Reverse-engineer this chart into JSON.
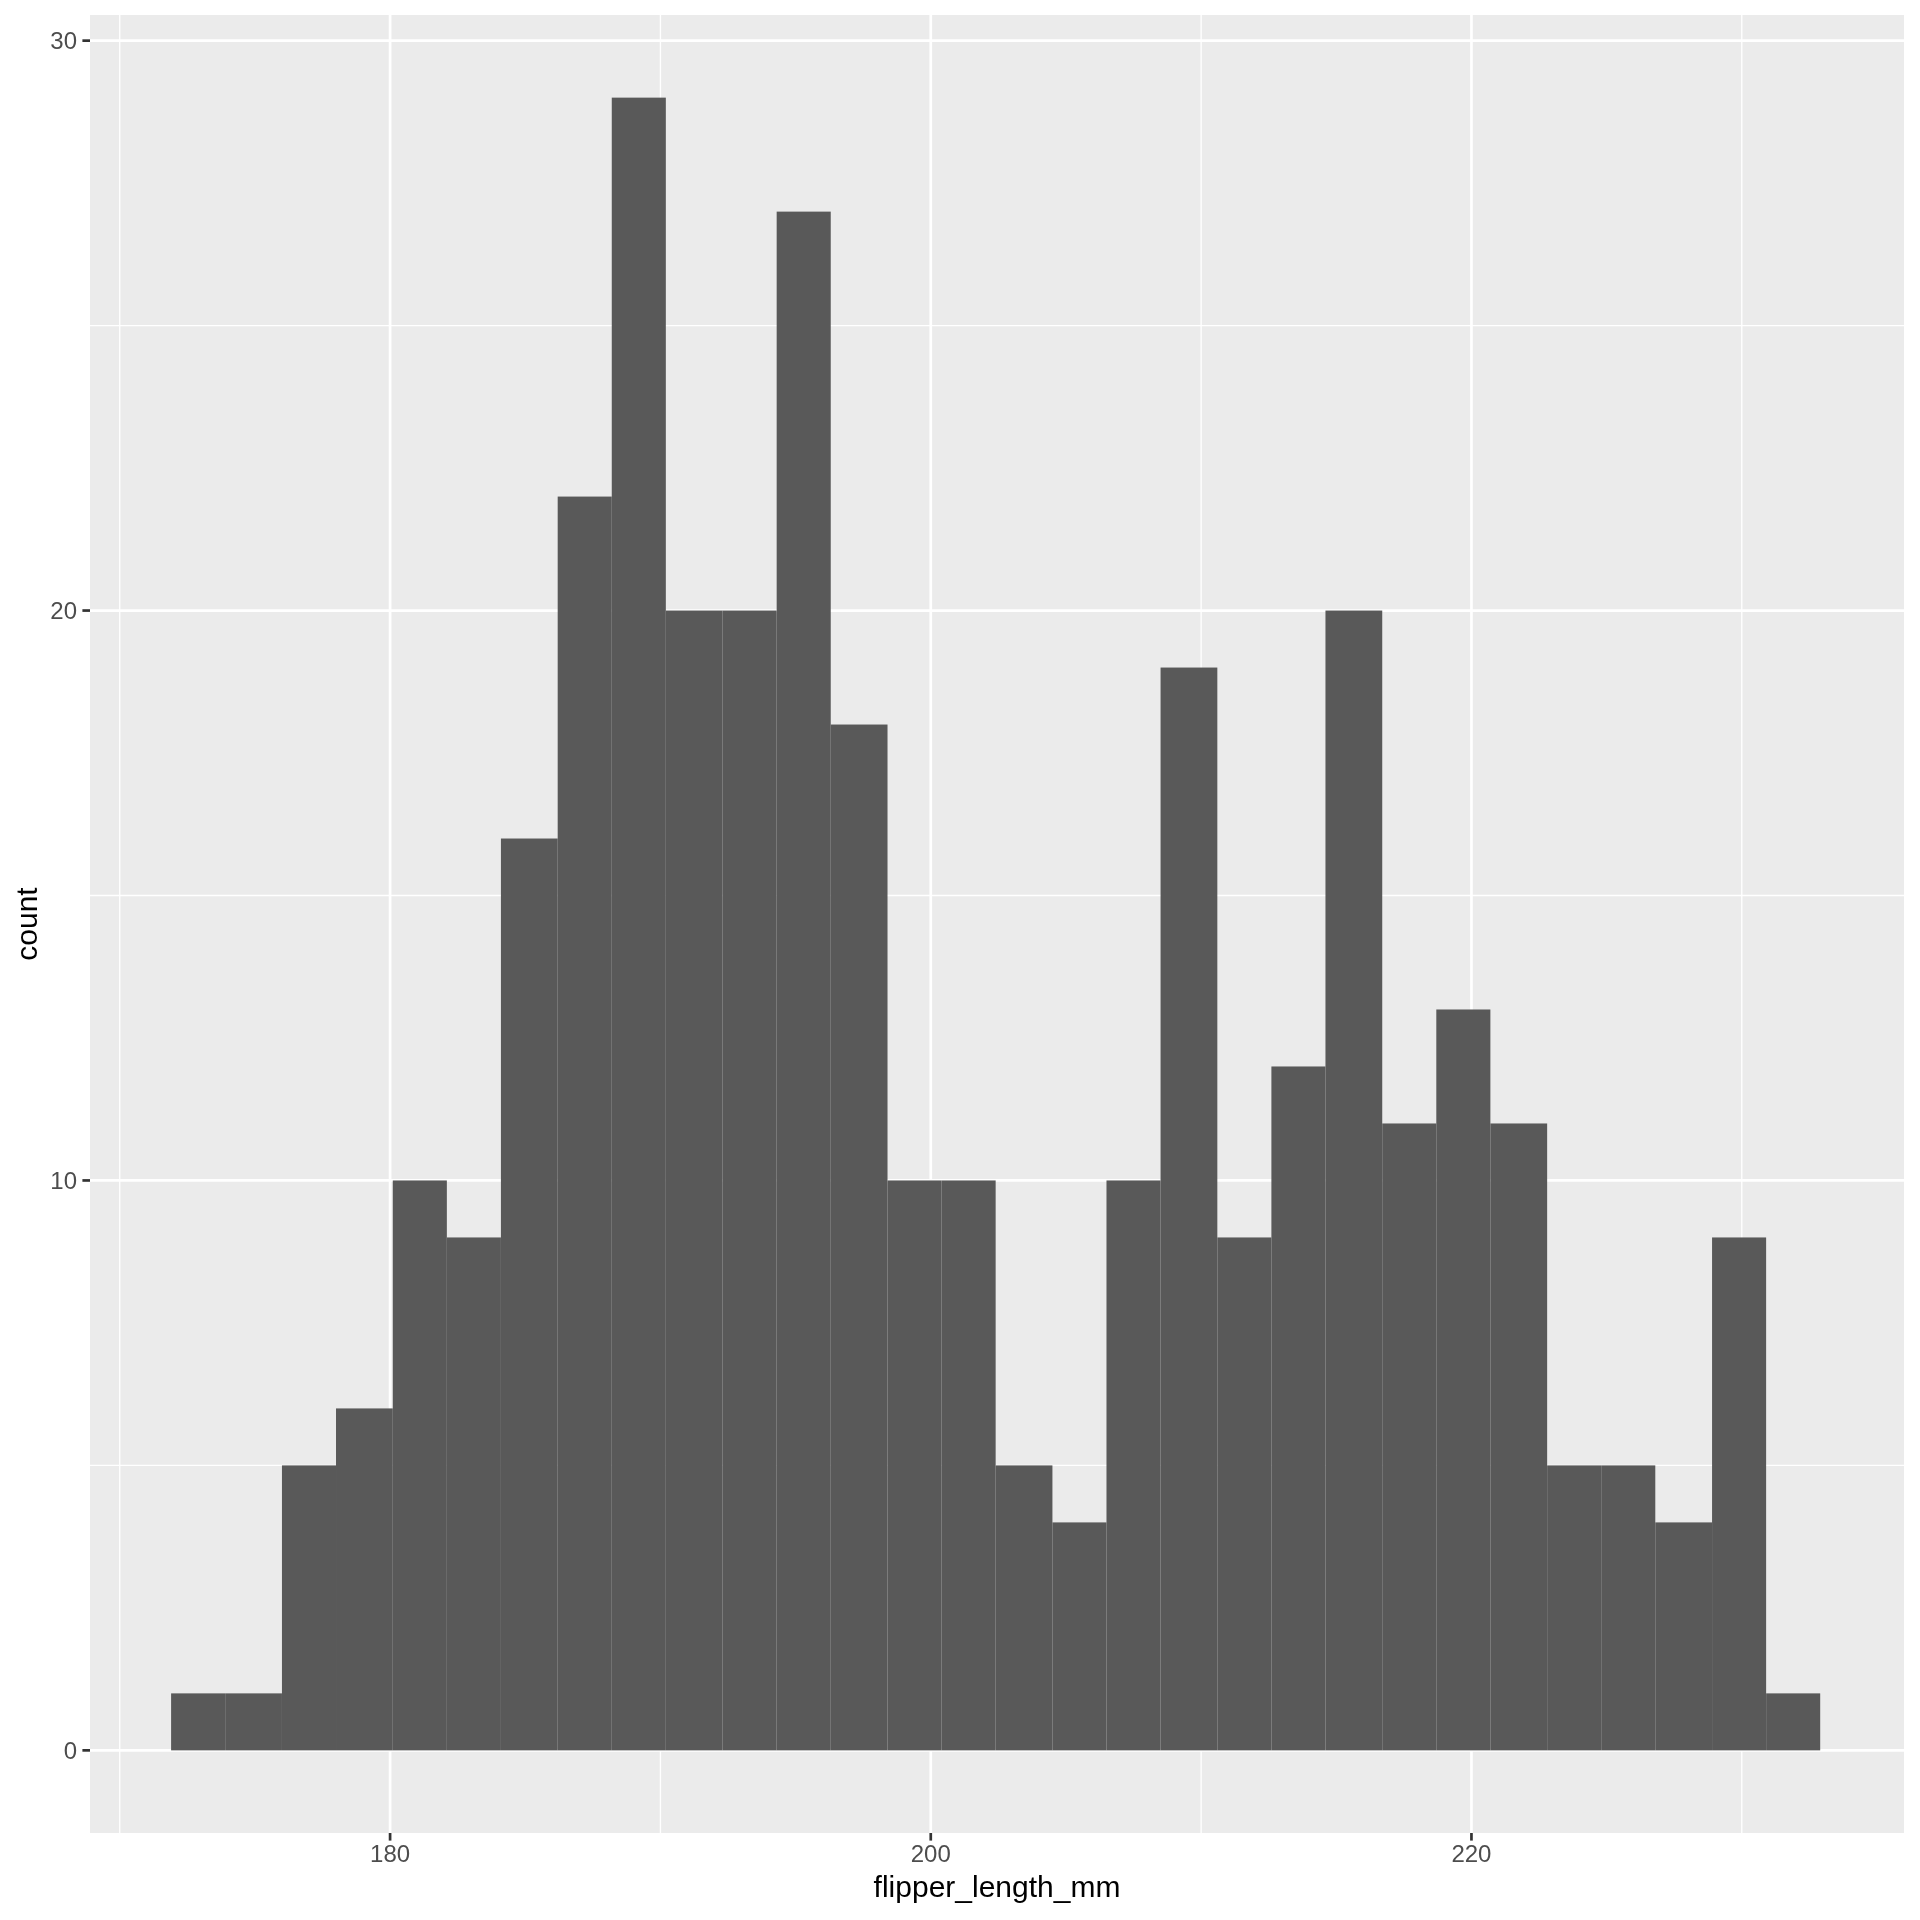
{
  "chart_data": {
    "type": "histogram",
    "xlabel": "flipper_length_mm",
    "ylabel": "count",
    "bins": [
      171.9,
      173.9,
      176,
      178,
      180.1,
      182.1,
      184.1,
      186.2,
      188.2,
      190.2,
      192.3,
      194.3,
      196.3,
      198.4,
      200.4,
      202.4,
      204.5,
      206.5,
      208.5,
      210.6,
      212.6,
      214.6,
      216.7,
      218.7,
      220.7,
      222.8,
      224.8,
      226.8,
      228.9,
      230.9,
      232.9
    ],
    "values": [
      1,
      1,
      5,
      6,
      10,
      9,
      16,
      22,
      29,
      20,
      20,
      27,
      18,
      10,
      10,
      5,
      4,
      10,
      19,
      9,
      12,
      20,
      11,
      13,
      11,
      5,
      5,
      4,
      9,
      1
    ],
    "color": "#595959",
    "xlim": [
      168.9,
      236
    ],
    "ylim": [
      -1.45,
      30.45
    ],
    "xticks": [
      {
        "value": 170,
        "label": null
      },
      180,
      {
        "value": 190,
        "label": null
      },
      200,
      {
        "value": 210,
        "label": null
      },
      220,
      {
        "value": 230,
        "label": null
      }
    ],
    "yticks": [
      0,
      {
        "value": 5,
        "label": null
      },
      10,
      {
        "value": 15,
        "label": null
      },
      20,
      {
        "value": 25,
        "label": null
      },
      30
    ],
    "grid": true
  }
}
